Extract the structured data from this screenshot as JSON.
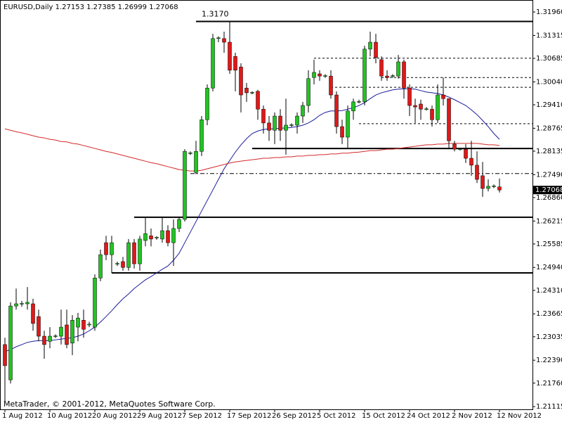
{
  "chart_data": {
    "type": "candlestick",
    "title": "EURUSD,Daily  1.27153 1.27385 1.26999 1.27068",
    "watermark": "MetaTrader, © 2001-2012, MetaQuotes Software Corp.",
    "categories": [
      "1 Aug 2012",
      null,
      null,
      null,
      null,
      null,
      null,
      null,
      "10 Aug 2012",
      null,
      null,
      null,
      null,
      null,
      null,
      null,
      "20 Aug 2012",
      null,
      null,
      null,
      null,
      null,
      null,
      null,
      "29 Aug 2012",
      null,
      null,
      null,
      null,
      null,
      null,
      null,
      "7 Sep 2012",
      null,
      null,
      null,
      null,
      null,
      null,
      null,
      "17 Sep 2012",
      null,
      null,
      null,
      null,
      null,
      null,
      null,
      "26 Sep 2012",
      null,
      null,
      null,
      null,
      null,
      null,
      null,
      "5 Oct 2012",
      null,
      null,
      null,
      null,
      null,
      null,
      null,
      "15 Oct 2012",
      null,
      null,
      null,
      null,
      null,
      null,
      null,
      "24 Oct 2012",
      null,
      null,
      null,
      null,
      null,
      null,
      null,
      "2 Nov 2012",
      null,
      null,
      null,
      null,
      null,
      null,
      null,
      "12 Nov 2012"
    ],
    "open": [
      1.2282,
      1.2185,
      1.2388,
      1.2394,
      1.2394,
      1.2394,
      1.2359,
      1.2305,
      1.2291,
      1.2305,
      1.2305,
      1.2336,
      1.2286,
      1.233,
      1.2349,
      1.2336,
      1.233,
      1.2465,
      1.2562,
      1.2529,
      1.2504,
      1.251,
      1.2494,
      1.2562,
      1.2504,
      1.2568,
      1.2581,
      1.2576,
      1.2572,
      1.2595,
      1.2562,
      1.2601,
      1.2626,
      1.2808,
      1.2755,
      1.2813,
      1.29,
      1.2987,
      1.3123,
      1.3123,
      1.3113,
      1.3074,
      1.3045,
      1.2987,
      1.2974,
      1.2978,
      1.2929,
      1.2891,
      1.2871,
      1.291,
      1.2871,
      1.2885,
      1.2885,
      1.291,
      1.2939,
      1.3016,
      1.3026,
      1.302,
      1.302,
      1.2968,
      1.2881,
      1.2852,
      1.2924,
      1.2949,
      1.2949,
      1.3094,
      1.3113,
      1.3065,
      1.302,
      1.302,
      1.302,
      1.3059,
      1.2987,
      1.2939,
      1.2943,
      1.2929,
      1.2929,
      1.29,
      1.2968,
      1.2958,
      1.2833,
      1.2819,
      1.2819,
      1.2794,
      1.2775,
      1.2746,
      1.2711,
      1.2717,
      1.27153
    ],
    "high": [
      1.2301,
      1.2398,
      1.2436,
      1.2402,
      1.244,
      1.2408,
      1.2378,
      1.232,
      1.233,
      1.231,
      1.2378,
      1.2378,
      1.2363,
      1.2369,
      1.2378,
      1.2345,
      1.2475,
      1.2543,
      1.2581,
      1.2581,
      1.251,
      1.2523,
      1.2572,
      1.2572,
      1.2581,
      1.263,
      1.2601,
      1.258,
      1.263,
      1.261,
      1.2626,
      1.263,
      1.2819,
      1.2813,
      1.2842,
      1.291,
      1.2997,
      1.3136,
      1.3129,
      1.3142,
      1.317,
      1.3084,
      1.3055,
      1.3001,
      1.2978,
      1.2982,
      1.2939,
      1.291,
      1.292,
      1.2929,
      1.2958,
      1.289,
      1.292,
      1.2949,
      1.3036,
      1.3065,
      1.3036,
      1.3025,
      1.3036,
      1.2978,
      1.29,
      1.2939,
      1.2958,
      1.2955,
      1.3103,
      1.3142,
      1.3136,
      1.3074,
      1.3036,
      1.3025,
      1.3078,
      1.3065,
      1.2997,
      1.2958,
      1.2955,
      1.2935,
      1.2939,
      1.2997,
      1.3016,
      1.2958,
      1.2842,
      1.2823,
      1.2833,
      1.2842,
      1.2813,
      1.2784,
      1.2736,
      1.2722,
      1.27385
    ],
    "low": [
      1.2127,
      1.2175,
      1.2378,
      1.2386,
      1.2378,
      1.232,
      1.2291,
      1.2243,
      1.2272,
      1.23,
      1.2282,
      1.2272,
      1.2253,
      1.2291,
      1.2301,
      1.233,
      1.232,
      1.2456,
      1.2514,
      1.2479,
      1.2498,
      1.2485,
      1.2485,
      1.2491,
      1.2485,
      1.2552,
      1.2552,
      1.257,
      1.2562,
      1.2552,
      1.2498,
      1.2591,
      1.262,
      1.2803,
      1.275,
      1.28,
      1.2885,
      1.2978,
      1.3113,
      1.3084,
      1.3026,
      1.2978,
      1.292,
      1.2949,
      1.297,
      1.29,
      1.2862,
      1.2842,
      1.2833,
      1.2842,
      1.2804,
      1.288,
      1.2862,
      1.2891,
      1.292,
      1.2997,
      1.3007,
      1.3015,
      1.2958,
      1.2862,
      1.2833,
      1.2823,
      1.29,
      1.2945,
      1.2939,
      1.3074,
      1.3055,
      1.3007,
      1.3007,
      1.3015,
      1.3013,
      1.2958,
      1.291,
      1.2891,
      1.29,
      1.2925,
      1.2881,
      1.2891,
      1.2939,
      1.2823,
      1.2813,
      1.2815,
      1.2781,
      1.2746,
      1.2726,
      1.2688,
      1.2703,
      1.2712,
      1.26999
    ],
    "close": [
      1.2224,
      1.2388,
      1.2394,
      1.2395,
      1.2398,
      1.234,
      1.2305,
      1.2282,
      1.2305,
      1.2306,
      1.233,
      1.2282,
      1.2349,
      1.2355,
      1.2324,
      1.2338,
      1.2465,
      1.2529,
      1.2529,
      1.2562,
      1.2505,
      1.2494,
      1.2562,
      1.2504,
      1.2572,
      1.2587,
      1.2572,
      1.2577,
      1.2595,
      1.2562,
      1.2601,
      1.2626,
      1.2813,
      1.2809,
      1.2813,
      1.29,
      1.2987,
      1.3123,
      1.3125,
      1.3113,
      1.3036,
      1.3036,
      1.2968,
      1.2974,
      1.2975,
      1.2929,
      1.2891,
      1.2871,
      1.291,
      1.2871,
      1.2885,
      1.2886,
      1.291,
      1.2939,
      1.3013,
      1.303,
      1.302,
      1.3021,
      1.2968,
      1.2881,
      1.2852,
      1.2924,
      1.2949,
      1.295,
      1.3094,
      1.3113,
      1.3071,
      1.302,
      1.3016,
      1.3021,
      1.3059,
      1.2987,
      1.2939,
      1.2935,
      1.2929,
      1.293,
      1.29,
      1.2968,
      1.2958,
      1.2842,
      1.2819,
      1.282,
      1.2794,
      1.2775,
      1.2736,
      1.2711,
      1.2717,
      1.2718,
      1.27068
    ],
    "up_color": "#22c322",
    "down_color": "#e01818",
    "moving_averages": [
      {
        "color": "#1c1c9c",
        "values": [
          1.2263,
          1.2268,
          1.2276,
          1.2282,
          1.2288,
          1.2291,
          1.2293,
          1.2293,
          1.2293,
          1.2295,
          1.2297,
          1.2299,
          1.2301,
          1.2305,
          1.2311,
          1.232,
          1.233,
          1.2344,
          1.2359,
          1.2375,
          1.2392,
          1.2408,
          1.2421,
          1.2436,
          1.2448,
          1.246,
          1.2469,
          1.2479,
          1.2489,
          1.2498,
          1.2514,
          1.2533,
          1.2562,
          1.2591,
          1.262,
          1.2649,
          1.2678,
          1.2707,
          1.2736,
          1.2765,
          1.2788,
          1.2811,
          1.2831,
          1.2848,
          1.2862,
          1.2869,
          1.2873,
          1.2875,
          1.2875,
          1.2877,
          1.2877,
          1.2879,
          1.2881,
          1.2885,
          1.2891,
          1.29,
          1.2912,
          1.292,
          1.2924,
          1.2924,
          1.2925,
          1.2929,
          1.2933,
          1.2939,
          1.2947,
          1.2958,
          1.2968,
          1.2974,
          1.2978,
          1.2982,
          1.2984,
          1.2985,
          1.2985,
          1.2984,
          1.298,
          1.2976,
          1.2974,
          1.2972,
          1.2968,
          1.2962,
          1.2955,
          1.2947,
          1.2939,
          1.2927,
          1.2914,
          1.2898,
          1.2881,
          1.2862,
          1.2846
        ]
      },
      {
        "color": "#d42a2a",
        "values": [
          1.2875,
          1.2871,
          1.2867,
          1.2864,
          1.286,
          1.2856,
          1.2852,
          1.285,
          1.2846,
          1.2844,
          1.284,
          1.2839,
          1.2835,
          1.2833,
          1.2829,
          1.2825,
          1.2821,
          1.2817,
          1.2813,
          1.281,
          1.2806,
          1.2802,
          1.2798,
          1.2794,
          1.279,
          1.2786,
          1.2782,
          1.2779,
          1.2775,
          1.2771,
          1.2767,
          1.2763,
          1.2761,
          1.2759,
          1.2759,
          1.2761,
          1.2765,
          1.2769,
          1.2773,
          1.2777,
          1.2781,
          1.2784,
          1.2786,
          1.2788,
          1.279,
          1.2792,
          1.2794,
          1.2794,
          1.2796,
          1.2796,
          1.2798,
          1.2798,
          1.28,
          1.28,
          1.2802,
          1.2802,
          1.2804,
          1.2804,
          1.2806,
          1.2806,
          1.2808,
          1.2808,
          1.281,
          1.2811,
          1.2813,
          1.2815,
          1.2815,
          1.2817,
          1.2819,
          1.2819,
          1.2821,
          1.2823,
          1.2825,
          1.2827,
          1.2829,
          1.2831,
          1.2831,
          1.2833,
          1.2833,
          1.2835,
          1.2835,
          1.2835,
          1.2835,
          1.2835,
          1.2835,
          1.2833,
          1.2831,
          1.2831,
          1.2829
        ]
      }
    ],
    "levels": [
      {
        "value": 1.317,
        "label": "1.3170",
        "from": 34,
        "style": "solid"
      },
      {
        "value": 1.3069,
        "from": 55,
        "style": "dash"
      },
      {
        "value": 1.3016,
        "from": 67,
        "style": "dash"
      },
      {
        "value": 1.2989,
        "from": 58,
        "style": "dash"
      },
      {
        "value": 1.2889,
        "from": 63,
        "style": "dash"
      },
      {
        "value": 1.2821,
        "from": 44,
        "style": "solid"
      },
      {
        "value": 1.2752,
        "from": 33,
        "style": "dashdot"
      },
      {
        "value": 1.2632,
        "from": 23,
        "style": "solid"
      },
      {
        "value": 1.2479,
        "from": 19,
        "style": "solid"
      }
    ],
    "ylim": [
      1.2104,
      1.3229
    ],
    "yticks": [
      {
        "value": 1.3196,
        "label": "1.31960"
      },
      {
        "value": 1.31315,
        "label": "1.31315"
      },
      {
        "value": 1.30685,
        "label": "1.30685"
      },
      {
        "value": 1.3004,
        "label": "1.30040"
      },
      {
        "value": 1.2941,
        "label": "1.29410"
      },
      {
        "value": 1.28765,
        "label": "1.28765"
      },
      {
        "value": 1.28135,
        "label": "1.28135"
      },
      {
        "value": 1.2749,
        "label": "1.27490"
      },
      {
        "value": 1.2686,
        "label": "1.26860"
      },
      {
        "value": 1.26215,
        "label": "1.26215"
      },
      {
        "value": 1.25585,
        "label": "1.25585"
      },
      {
        "value": 1.2494,
        "label": "1.24940"
      },
      {
        "value": 1.2431,
        "label": "1.24310"
      },
      {
        "value": 1.23665,
        "label": "1.23665"
      },
      {
        "value": 1.23035,
        "label": "1.23035"
      },
      {
        "value": 1.2239,
        "label": "1.22390"
      },
      {
        "value": 1.2176,
        "label": "1.21760"
      },
      {
        "value": 1.21115,
        "label": "1.21115"
      }
    ],
    "grid": false
  }
}
